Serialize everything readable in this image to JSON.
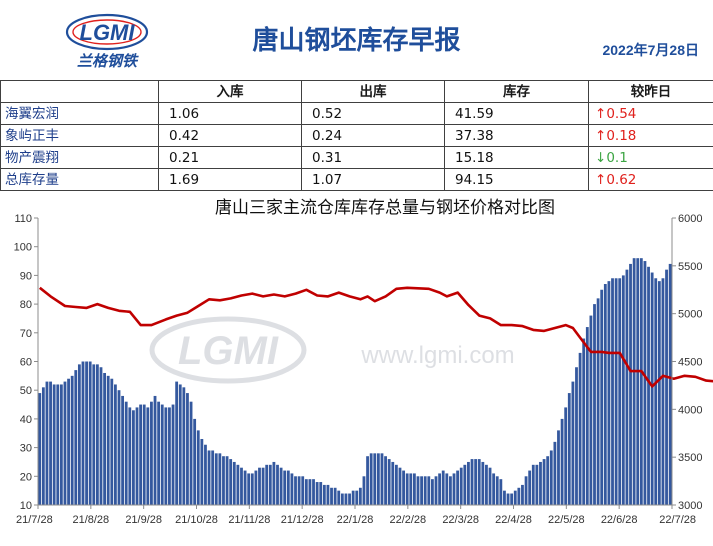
{
  "header": {
    "title": "唐山钢坯库存早报",
    "date": "2022年7月28日",
    "logo_text": "LGMI",
    "logo_subtext": "兰格钢铁"
  },
  "table": {
    "headers": [
      "",
      "入库",
      "出库",
      "库存",
      "较昨日"
    ],
    "rows": [
      {
        "name": "海翼宏润",
        "in": "1.06",
        "out": "0.52",
        "stock": "41.59",
        "change_arrow": "↑",
        "change_value": "0.54",
        "direction": "up"
      },
      {
        "name": "象屿正丰",
        "in": "0.42",
        "out": "0.24",
        "stock": "37.38",
        "change_arrow": "↑",
        "change_value": "0.18",
        "direction": "up"
      },
      {
        "name": "物产震翔",
        "in": "0.21",
        "out": "0.31",
        "stock": "15.18",
        "change_arrow": "↓",
        "change_value": "0.1",
        "direction": "down"
      },
      {
        "name": "总库存量",
        "in": "1.69",
        "out": "1.07",
        "stock": "94.15",
        "change_arrow": "↑",
        "change_value": "0.62",
        "direction": "up"
      }
    ],
    "colors": {
      "up": "#e0211d",
      "down": "#3da544"
    }
  },
  "watermark": {
    "logo": "LGMI",
    "url": "www.lgmi.com"
  },
  "chart_data": {
    "type": "bar+line",
    "title": "唐山三家主流仓库库存总量与钢坯价格对比图",
    "x_labels": [
      "21/7/28",
      "21/8/28",
      "21/9/28",
      "21/10/28",
      "21/11/28",
      "21/12/28",
      "22/1/28",
      "22/2/28",
      "22/3/28",
      "22/4/28",
      "22/5/28",
      "22/6/28",
      "22/7/28"
    ],
    "y_left": {
      "min": 10,
      "max": 110,
      "ticks": [
        10,
        20,
        30,
        40,
        50,
        60,
        70,
        80,
        90,
        100,
        110
      ]
    },
    "y_right": {
      "min": 3000,
      "max": 6000,
      "ticks": [
        3000,
        3500,
        4000,
        4500,
        5000,
        5500,
        6000
      ]
    },
    "grid": false,
    "series": [
      {
        "kind": "bar",
        "axis": "left",
        "color": "#34589e",
        "values": [
          49,
          51,
          53,
          53,
          52,
          52,
          52,
          53,
          54,
          55,
          57,
          59,
          60,
          60,
          60,
          59,
          59,
          58,
          56,
          55,
          54,
          52,
          50,
          48,
          46,
          44,
          43,
          44,
          45,
          45,
          44,
          46,
          48,
          46,
          45,
          44,
          44,
          45,
          53,
          52,
          51,
          49,
          46,
          40,
          36,
          33,
          31,
          29,
          29,
          28,
          28,
          27,
          27,
          26,
          25,
          24,
          23,
          22,
          21,
          21,
          22,
          23,
          23,
          24,
          24,
          25,
          24,
          23,
          22,
          22,
          21,
          20,
          20,
          20,
          19,
          19,
          19,
          18,
          18,
          17,
          17,
          16,
          16,
          15,
          14,
          14,
          14,
          15,
          15,
          16,
          20,
          27,
          28,
          28,
          28,
          28,
          27,
          26,
          25,
          24,
          23,
          22,
          21,
          21,
          21,
          20,
          20,
          20,
          20,
          19,
          20,
          21,
          22,
          21,
          20,
          21,
          22,
          23,
          24,
          25,
          26,
          26,
          26,
          25,
          24,
          23,
          21,
          20,
          19,
          15,
          14,
          14,
          15,
          16,
          17,
          20,
          22,
          24,
          24,
          25,
          26,
          27,
          29,
          32,
          36,
          40,
          44,
          49,
          53,
          58,
          63,
          68,
          72,
          76,
          80,
          82,
          85,
          87,
          88,
          89,
          89,
          89,
          90,
          92,
          94,
          96,
          96,
          96,
          95,
          93,
          91,
          89,
          88,
          89,
          92,
          94
        ]
      },
      {
        "kind": "line",
        "axis": "right",
        "color": "#c00000",
        "points": [
          [
            0,
            5270
          ],
          [
            3,
            5180
          ],
          [
            7,
            5080
          ],
          [
            10,
            5070
          ],
          [
            13,
            5060
          ],
          [
            16,
            5100
          ],
          [
            19,
            5060
          ],
          [
            22,
            5030
          ],
          [
            25,
            5020
          ],
          [
            28,
            4880
          ],
          [
            31,
            4880
          ],
          [
            35,
            4940
          ],
          [
            38,
            4980
          ],
          [
            41,
            5010
          ],
          [
            44,
            5080
          ],
          [
            47,
            5150
          ],
          [
            50,
            5140
          ],
          [
            53,
            5160
          ],
          [
            56,
            5190
          ],
          [
            59,
            5210
          ],
          [
            62,
            5180
          ],
          [
            65,
            5200
          ],
          [
            68,
            5180
          ],
          [
            71,
            5210
          ],
          [
            74,
            5250
          ],
          [
            77,
            5190
          ],
          [
            80,
            5180
          ],
          [
            83,
            5220
          ],
          [
            86,
            5180
          ],
          [
            89,
            5150
          ],
          [
            91,
            5180
          ],
          [
            93,
            5130
          ],
          [
            96,
            5180
          ],
          [
            99,
            5260
          ],
          [
            102,
            5270
          ],
          [
            105,
            5265
          ],
          [
            108,
            5260
          ],
          [
            111,
            5220
          ],
          [
            113,
            5180
          ],
          [
            116,
            5220
          ],
          [
            119,
            5090
          ],
          [
            122,
            4980
          ],
          [
            125,
            4950
          ],
          [
            128,
            4880
          ],
          [
            131,
            4880
          ],
          [
            134,
            4870
          ],
          [
            137,
            4830
          ],
          [
            140,
            4820
          ],
          [
            143,
            4850
          ],
          [
            146,
            4880
          ],
          [
            148,
            4850
          ],
          [
            150,
            4750
          ],
          [
            153,
            4600
          ],
          [
            156,
            4600
          ],
          [
            158,
            4590
          ],
          [
            161,
            4590
          ],
          [
            164,
            4400
          ],
          [
            167,
            4400
          ],
          [
            170,
            4240
          ],
          [
            173,
            4350
          ],
          [
            176,
            4320
          ],
          [
            179,
            4350
          ],
          [
            182,
            4340
          ],
          [
            185,
            4300
          ],
          [
            188,
            4290
          ],
          [
            191,
            4300
          ],
          [
            194,
            4310
          ]
        ]
      }
    ],
    "line_series_right_axis": true
  }
}
